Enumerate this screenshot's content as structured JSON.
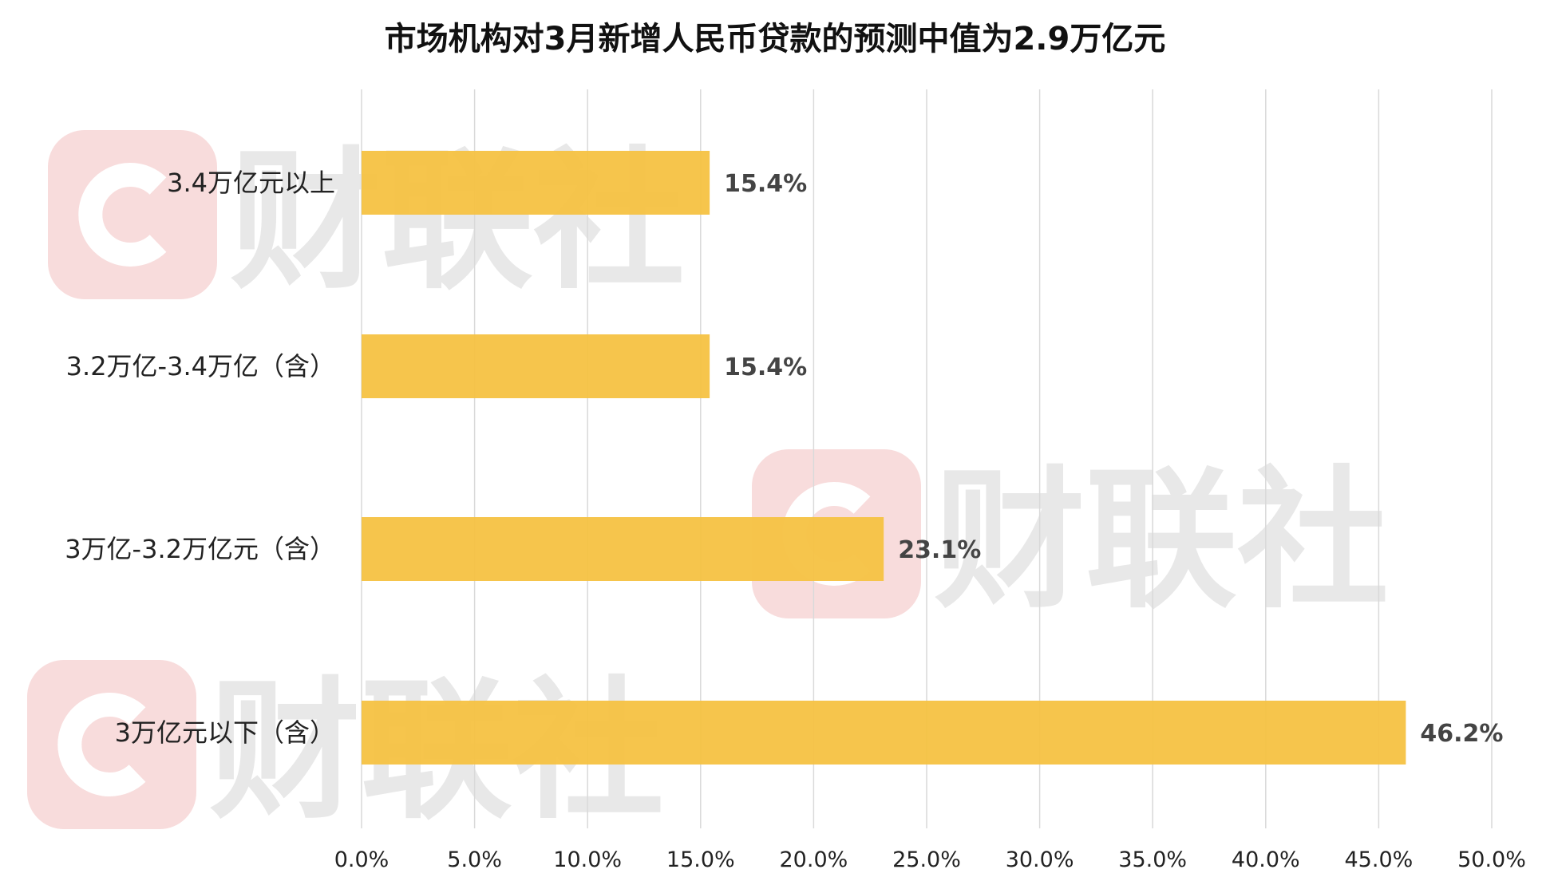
{
  "chart_data": {
    "type": "bar",
    "orientation": "horizontal",
    "title": "市场机构对3月新增人民币贷款的预测中值为2.9万亿元",
    "categories": [
      "3.4万亿元以上",
      "3.2万亿-3.4万亿（含）",
      "3万亿-3.2万亿元（含）",
      "3万亿元以下（含）"
    ],
    "values": [
      15.4,
      15.4,
      23.1,
      46.2
    ],
    "value_labels": [
      "15.4%",
      "15.4%",
      "23.1%",
      "46.2%"
    ],
    "xlim": [
      0,
      50
    ],
    "x_ticks": [
      0,
      5,
      10,
      15,
      20,
      25,
      30,
      35,
      40,
      45,
      50
    ],
    "x_tick_labels": [
      "0.0%",
      "5.0%",
      "10.0%",
      "15.0%",
      "20.0%",
      "25.0%",
      "30.0%",
      "35.0%",
      "40.0%",
      "45.0%",
      "50.0%"
    ],
    "grid": "vertical",
    "legend": "none",
    "colors": {
      "bar": "#F5C242",
      "grid": "#D9D9D9"
    }
  },
  "watermark": {
    "text": "财联社",
    "icon": "cls-logo-icon",
    "colors": {
      "logo": "#F8DCDC",
      "text": "#E8E8E8"
    }
  }
}
